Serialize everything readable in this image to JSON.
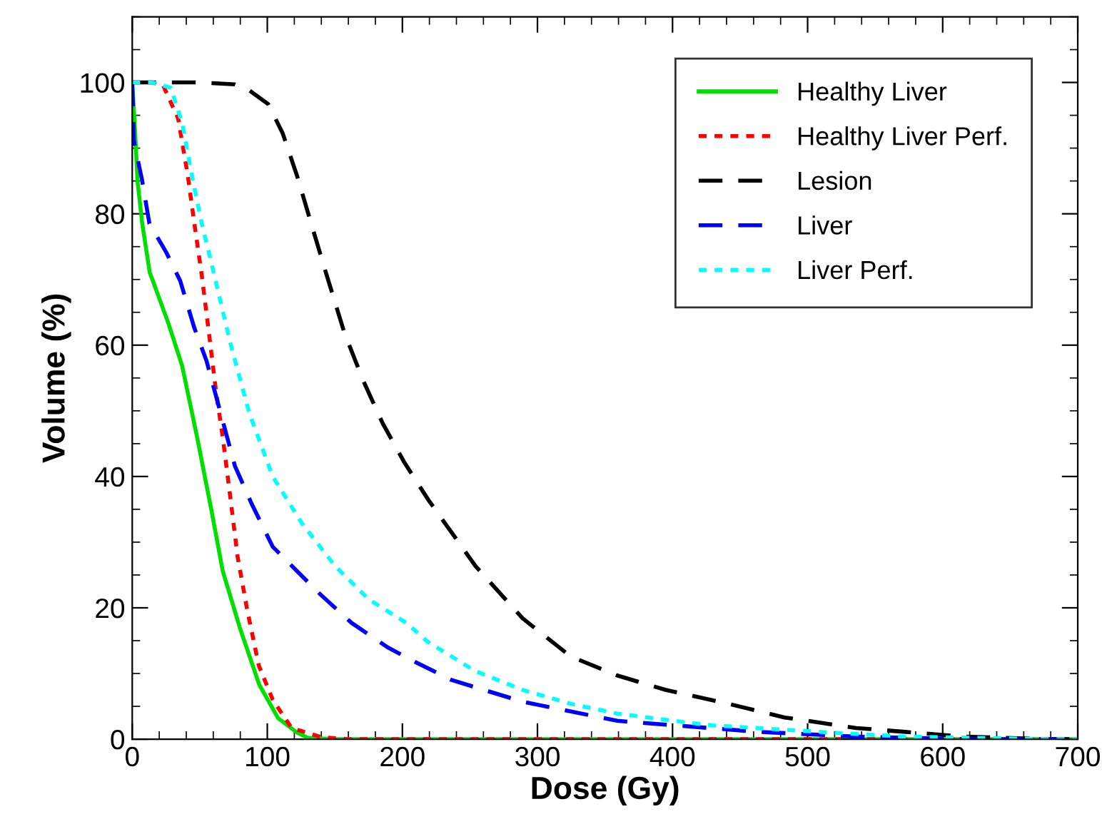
{
  "chart_data": {
    "type": "line",
    "xlabel": "Dose (Gy)",
    "ylabel": "Volume (%)",
    "xlim": [
      0,
      700
    ],
    "xticks": [
      0,
      100,
      200,
      300,
      400,
      500,
      600,
      700
    ],
    "ylim": [
      0,
      110
    ],
    "yticks": [
      0,
      20,
      40,
      60,
      80,
      100
    ],
    "grid": false,
    "legend": "top right",
    "marker": "none",
    "series": [
      {
        "name": "Healthy Liver",
        "color": "#00e000",
        "line_style": "solid",
        "x": [
          0,
          2,
          3.9,
          7.4,
          13,
          14.5,
          26.8,
          37,
          48,
          58.5,
          67,
          79.6,
          94,
          108,
          122,
          130,
          150,
          700
        ],
        "values": [
          100,
          93,
          85,
          78.5,
          71,
          70.2,
          63.3,
          56.8,
          46,
          35,
          25.6,
          17,
          8.3,
          3.2,
          1,
          0.2,
          0,
          0
        ]
      },
      {
        "name": "Healthy Liver Perf.",
        "color": "#ff0000",
        "line_style": "dotted",
        "x": [
          0,
          15,
          23,
          34,
          41,
          46,
          51.5,
          56.7,
          62,
          67,
          72.5,
          78,
          85,
          93.7,
          104,
          118,
          140,
          160,
          700
        ],
        "values": [
          100,
          100,
          99.5,
          94.5,
          86,
          78.5,
          70.6,
          62,
          53,
          46,
          37,
          27.8,
          19.8,
          11.2,
          6,
          1.7,
          0.3,
          0,
          0
        ]
      },
      {
        "name": "Lesion",
        "color": "#000000",
        "line_style": "dashed",
        "x": [
          0,
          50,
          76,
          86.7,
          100.7,
          111.3,
          122,
          132.5,
          143,
          157,
          171,
          185.4,
          201,
          219,
          254,
          289,
          324.5,
          359,
          395,
          441,
          483,
          536,
          585,
          614,
          680,
          700
        ],
        "values": [
          100,
          100,
          99.7,
          98.8,
          96.7,
          92.3,
          85.8,
          78.5,
          71.3,
          61.9,
          54.6,
          48.1,
          42.3,
          36.5,
          26.4,
          18.4,
          12.6,
          9.7,
          7.5,
          5.4,
          3.3,
          1.7,
          0.9,
          0.4,
          0,
          0
        ]
      },
      {
        "name": "Liver",
        "color": "#0000ff",
        "line_style": "dashed",
        "x": [
          0,
          1.3,
          7.4,
          12.7,
          25,
          35.5,
          46,
          55,
          65.5,
          76,
          88.5,
          104,
          122,
          139.5,
          162.4,
          189,
          208,
          236.5,
          289,
          359,
          395,
          465,
          535,
          620,
          700
        ],
        "values": [
          100,
          91,
          85,
          78.5,
          74.2,
          69.8,
          62.6,
          57.6,
          49.6,
          41.6,
          35.8,
          29.3,
          25.6,
          22,
          17.7,
          14,
          11.9,
          9,
          5.7,
          2.8,
          2.2,
          1.1,
          0.4,
          0,
          0
        ]
      },
      {
        "name": "Liver Perf.",
        "color": "#00ffff",
        "line_style": "dotted",
        "x": [
          0,
          15,
          28.5,
          37,
          44,
          51.5,
          60,
          72.5,
          86.7,
          104,
          125.5,
          150,
          175,
          203,
          219,
          253.7,
          289,
          324.5,
          359,
          412,
          430,
          518,
          571,
          680,
          700
        ],
        "values": [
          100,
          100,
          99.2,
          93.8,
          86,
          78.5,
          71.3,
          60.4,
          49.6,
          40,
          32.9,
          26.4,
          21.3,
          17.7,
          14.8,
          10.4,
          7.5,
          5.4,
          3.9,
          2.5,
          2.1,
          1,
          0.4,
          0,
          0
        ]
      }
    ]
  }
}
